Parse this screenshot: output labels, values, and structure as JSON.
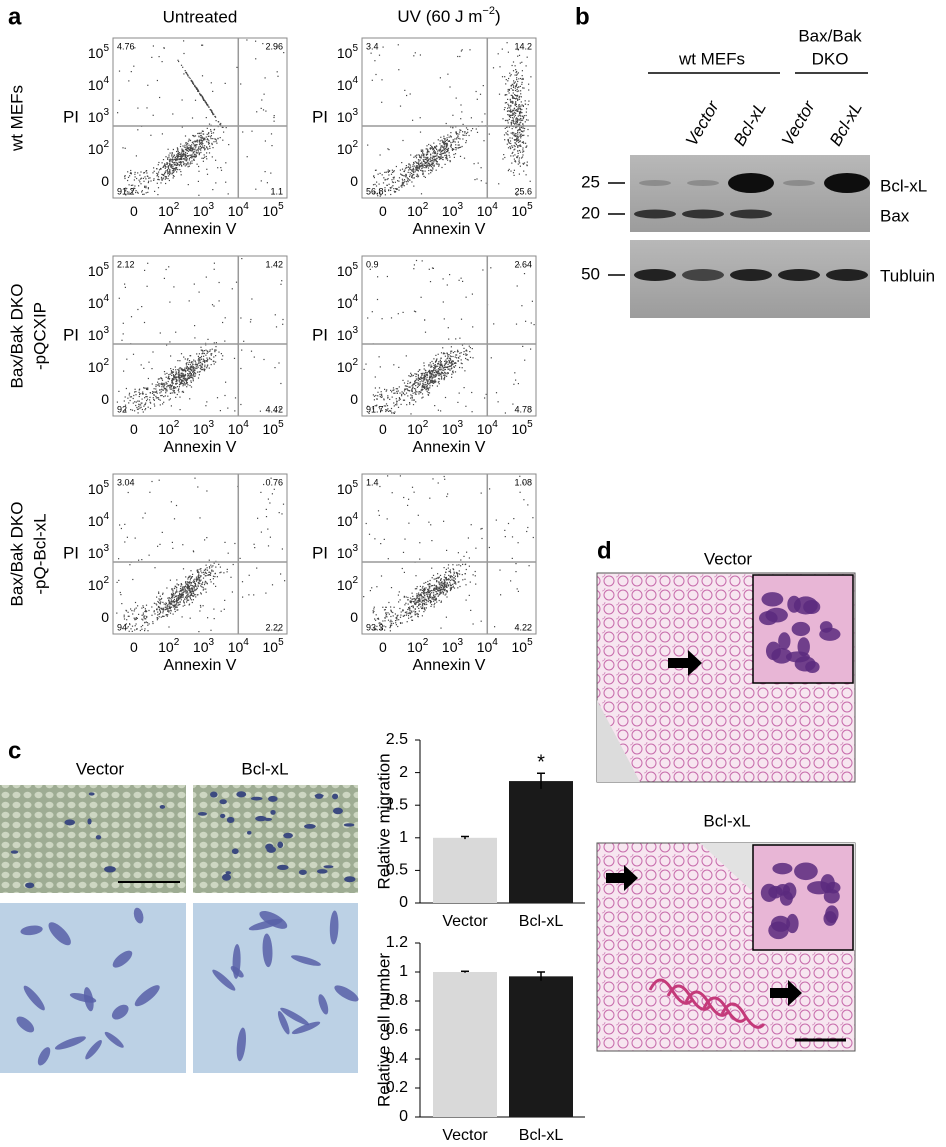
{
  "figure": {
    "panel_a": {
      "label": "a",
      "columns": [
        {
          "title": "Untreated"
        },
        {
          "title": "UV (60 J m",
          "title_sup": "−2",
          "title_end": ")"
        }
      ],
      "rows": [
        {
          "label": [
            "wt MEFs"
          ]
        },
        {
          "label": [
            "Bax/Bak DKO",
            "-pQCXIP"
          ]
        },
        {
          "label": [
            "Bax/Bak DKO",
            "-pQ-Bcl-xL"
          ]
        }
      ],
      "x_label": "Annexin V",
      "y_label": "PI",
      "axis_ticks": [
        {
          "base": "0"
        },
        {
          "base": "10",
          "exp": "2"
        },
        {
          "base": "10",
          "exp": "3"
        },
        {
          "base": "10",
          "exp": "4"
        },
        {
          "base": "10",
          "exp": "5"
        }
      ],
      "plots": [
        {
          "quadrants": [
            4.76,
            2.96,
            91.2,
            1.1
          ]
        },
        {
          "quadrants": [
            3.4,
            14.2,
            56.8,
            25.6
          ]
        },
        {
          "quadrants": [
            2.12,
            1.42,
            92,
            4.42
          ]
        },
        {
          "quadrants": [
            0.9,
            2.64,
            91.7,
            4.78
          ]
        },
        {
          "quadrants": [
            3.04,
            0.76,
            94,
            2.22
          ]
        },
        {
          "quadrants": [
            1.4,
            1.08,
            93.3,
            4.22
          ]
        }
      ]
    },
    "panel_b": {
      "label": "b",
      "groups": [
        {
          "name": [
            "wt MEFs"
          ]
        },
        {
          "name": [
            "Bax/Bak",
            "DKO"
          ]
        }
      ],
      "lane_labels": [
        "Vector",
        "Bcl-xL",
        "Vector",
        "Bcl-xL"
      ],
      "markers": [
        25,
        20,
        50
      ],
      "bands": [
        "Bcl-xL",
        "Bax",
        "Tubluin"
      ]
    },
    "panel_c": {
      "label": "c",
      "image_labels": [
        "Vector",
        "Bcl-xL"
      ]
    },
    "panel_d": {
      "label": "d",
      "image_labels": [
        "Vector",
        "Bcl-xL"
      ]
    }
  },
  "chart_data": [
    {
      "type": "bar",
      "y_label": "Relative migration",
      "categories": [
        "Vector",
        "Bcl-xL"
      ],
      "values": [
        1.0,
        1.87
      ],
      "errors": [
        0.02,
        0.12
      ],
      "colors": [
        "#d9d9d9",
        "#1a1a1a"
      ],
      "annotation": "*",
      "ylim": [
        0,
        2.5
      ],
      "yticks": [
        0,
        0.5,
        1,
        1.5,
        2,
        2.5
      ]
    },
    {
      "type": "bar",
      "y_label": "Relative cell number",
      "categories": [
        "Vector",
        "Bcl-xL"
      ],
      "values": [
        1.0,
        0.97
      ],
      "errors": [
        0.005,
        0.03
      ],
      "colors": [
        "#d9d9d9",
        "#1a1a1a"
      ],
      "ylim": [
        0,
        1.2
      ],
      "yticks": [
        0,
        0.2,
        0.4,
        0.6,
        0.8,
        1,
        1.2
      ]
    }
  ]
}
